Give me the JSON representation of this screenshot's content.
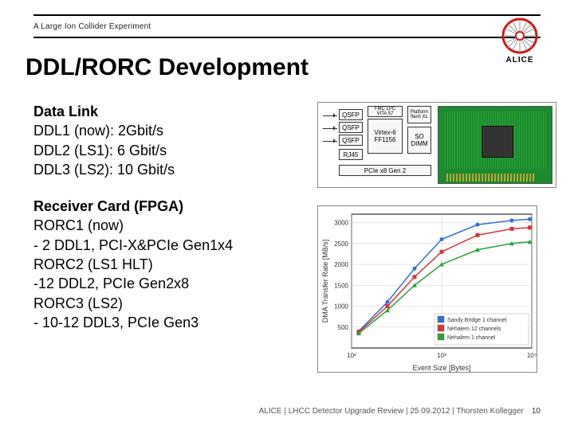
{
  "header": {
    "subline": "A Large Ion Collider Experiment",
    "logo_label": "ALICE",
    "logo_colors": {
      "ring": "#cc1b1b",
      "spokes": "#999999",
      "center": "#ffffff"
    }
  },
  "title": "DDL/RORC Development",
  "body": {
    "datalink": {
      "head": "Data Link",
      "l1": "DDL1 (now): 2Gbit/s",
      "l2": "DDL2 (LS1): 6 Gbit/s",
      "l3": "DDL3 (LS2): 10 Gbit/s"
    },
    "receiver": {
      "head": "Receiver Card (FPGA)",
      "l1": "RORC1 (now)",
      "l2": "- 2 DDL1, PCI-X&PCIe Gen1x4",
      "l3": "RORC2 (LS1 HLT)",
      "l4": "-12 DDL2, PCIe Gen2x8",
      "l5": "RORC3 (LS2)",
      "l6": "- 10-12 DDL3, PCIe Gen3"
    }
  },
  "board": {
    "boxes": {
      "qsfp1": "QSFP",
      "qsfp2": "QSFP",
      "qsfp3": "QSFP",
      "rj45": "RJ45",
      "fpga": "Virtex-6\nFF1156",
      "fmc": "FMC LPC\nVITA 57",
      "so": "SO\nDIMM",
      "plat": "Platform\nflash XL"
    },
    "bus_label": "PCIe x8 Gen 2",
    "pcb_colors": {
      "bg": "#1c8a2e",
      "traces": "#b7e07a",
      "chip": "#333333",
      "gold": "#c4a437"
    }
  },
  "chart": {
    "type": "line",
    "title_x": "Event Size [Bytes]",
    "title_y": "DMA Transfer Rate [MB/s]",
    "x_ticks": [
      "10²",
      "10³",
      "10⁴"
    ],
    "y_ticks": [
      "500",
      "1000",
      "1500",
      "2000",
      "2500",
      "3000"
    ],
    "xlim": [
      100,
      10000
    ],
    "ylim": [
      0,
      3200
    ],
    "background_color": "#ffffff",
    "grid_color": "#cccccc",
    "axis_color": "#000000",
    "series": [
      {
        "label": "Sandy Bridge 1 channel",
        "color": "#2e6fdb",
        "marker": "circle",
        "points": [
          [
            120,
            400
          ],
          [
            250,
            1100
          ],
          [
            500,
            1900
          ],
          [
            1000,
            2600
          ],
          [
            2500,
            2950
          ],
          [
            6000,
            3050
          ],
          [
            9500,
            3080
          ]
        ]
      },
      {
        "label": "Nehalem 12 channels",
        "color": "#d93434",
        "marker": "square",
        "points": [
          [
            120,
            380
          ],
          [
            250,
            1000
          ],
          [
            500,
            1700
          ],
          [
            1000,
            2300
          ],
          [
            2500,
            2700
          ],
          [
            6000,
            2850
          ],
          [
            9500,
            2880
          ]
        ]
      },
      {
        "label": "Nehalem 1 channel",
        "color": "#2aa336",
        "marker": "triangle",
        "points": [
          [
            120,
            350
          ],
          [
            250,
            900
          ],
          [
            500,
            1500
          ],
          [
            1000,
            2000
          ],
          [
            2500,
            2350
          ],
          [
            6000,
            2500
          ],
          [
            9500,
            2540
          ]
        ]
      }
    ],
    "legend_position": "bottom-right"
  },
  "footer": {
    "text": "ALICE | LHCC Detector Upgrade Review | 25.09.2012 | Thorsten Kollegger",
    "page": "10"
  }
}
